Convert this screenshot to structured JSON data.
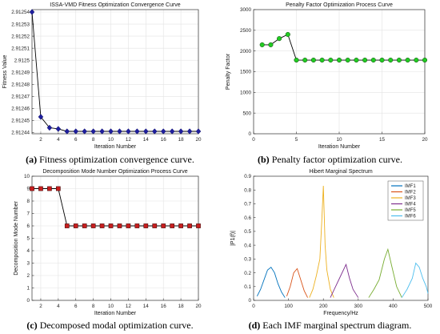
{
  "captions": [
    {
      "letter": "(a)",
      "text": " Fitness optimization convergence curve."
    },
    {
      "letter": "(b)",
      "text": " Penalty factor optimization curve."
    },
    {
      "letter": "(c)",
      "text": " Decomposed modal optimization curve."
    },
    {
      "letter": "(d)",
      "text": " Each IMF marginal spectrum diagram."
    }
  ],
  "chart_data": [
    {
      "type": "line",
      "title": "ISSA-VMD Fitness Optimization Convergence Curve",
      "xlabel": "Iteration Number",
      "ylabel": "Fitness Value",
      "xlim": [
        1,
        20
      ],
      "ylim": [
        2.912439,
        2.912542
      ],
      "xticks": [
        2,
        4,
        6,
        8,
        10,
        12,
        14,
        16,
        18,
        20
      ],
      "yticks": [
        2.91244,
        2.91245,
        2.91246,
        2.91247,
        2.91248,
        2.91249,
        2.9125,
        2.91251,
        2.91252,
        2.91253,
        2.91254
      ],
      "ytick_labels": [
        "2.91244",
        "2.91245",
        "2.91246",
        "2.91247",
        "2.91248",
        "2.91249",
        "2.9125",
        "2.91251",
        "2.91252",
        "2.91253",
        "2.91254"
      ],
      "grid": true,
      "line_color": "#000000",
      "marker": "diamond",
      "marker_color": "#1f1f9e",
      "x": [
        1,
        2,
        3,
        4,
        5,
        6,
        7,
        8,
        9,
        10,
        11,
        12,
        13,
        14,
        15,
        16,
        17,
        18,
        19,
        20
      ],
      "y": [
        2.91254,
        2.912453,
        2.912444,
        2.912443,
        2.912441,
        2.912441,
        2.912441,
        2.912441,
        2.912441,
        2.912441,
        2.912441,
        2.912441,
        2.912441,
        2.912441,
        2.912441,
        2.912441,
        2.912441,
        2.912441,
        2.912441,
        2.912441
      ]
    },
    {
      "type": "line",
      "title": "Penalty Factor Optimization Process Curve",
      "xlabel": "Iteration Number",
      "ylabel": "Penalty Factor",
      "xlim": [
        0,
        20
      ],
      "ylim": [
        0,
        3000
      ],
      "xticks": [
        0,
        5,
        10,
        15,
        20
      ],
      "yticks": [
        0,
        500,
        1000,
        1500,
        2000,
        2500,
        3000
      ],
      "grid": true,
      "line_color": "#000000",
      "marker": "circle",
      "marker_color": "#22cc22",
      "x": [
        1,
        2,
        3,
        4,
        5,
        6,
        7,
        8,
        9,
        10,
        11,
        12,
        13,
        14,
        15,
        16,
        17,
        18,
        19,
        20
      ],
      "y": [
        2150,
        2150,
        2300,
        2400,
        1780,
        1780,
        1780,
        1780,
        1780,
        1780,
        1780,
        1780,
        1780,
        1780,
        1780,
        1780,
        1780,
        1780,
        1780,
        1780
      ]
    },
    {
      "type": "line",
      "title": "Decomposition Mode Number Optimization Process Curve",
      "xlabel": "Iteration Number",
      "ylabel": "Decomposition Mode Number",
      "xlim": [
        1,
        20
      ],
      "ylim": [
        0,
        10
      ],
      "xticks": [
        2,
        4,
        6,
        8,
        10,
        12,
        14,
        16,
        18,
        20
      ],
      "yticks": [
        0,
        1,
        2,
        3,
        4,
        5,
        6,
        7,
        8,
        9,
        10
      ],
      "grid": true,
      "line_color": "#000000",
      "marker": "square",
      "marker_color": "#c81e1e",
      "x": [
        1,
        2,
        3,
        4,
        5,
        6,
        7,
        8,
        9,
        10,
        11,
        12,
        13,
        14,
        15,
        16,
        17,
        18,
        19,
        20
      ],
      "y": [
        9,
        9,
        9,
        9,
        6,
        6,
        6,
        6,
        6,
        6,
        6,
        6,
        6,
        6,
        6,
        6,
        6,
        6,
        6,
        6
      ]
    },
    {
      "type": "line",
      "title": "Hibert Marginal Spectrum",
      "xlabel": "Frequency/Hz",
      "ylabel": "|P1(f)|",
      "xlim": [
        0,
        500
      ],
      "ylim": [
        0,
        0.9
      ],
      "xticks": [
        0,
        100,
        200,
        300,
        400,
        500
      ],
      "yticks": [
        0,
        0.1,
        0.2,
        0.3,
        0.4,
        0.5,
        0.6,
        0.7,
        0.8,
        0.9
      ],
      "grid": false,
      "legend": "top-right",
      "series": [
        {
          "name": "IMF1",
          "color": "#0072bd",
          "x": [
            10,
            20,
            30,
            40,
            50,
            60,
            70,
            80,
            90
          ],
          "y": [
            0.03,
            0.08,
            0.15,
            0.22,
            0.24,
            0.2,
            0.12,
            0.06,
            0.02
          ]
        },
        {
          "name": "IMF2",
          "color": "#d95319",
          "x": [
            95,
            105,
            115,
            125,
            135,
            145,
            155
          ],
          "y": [
            0.03,
            0.1,
            0.2,
            0.23,
            0.15,
            0.07,
            0.02
          ]
        },
        {
          "name": "IMF3",
          "color": "#edb120",
          "x": [
            160,
            170,
            180,
            190,
            195,
            200,
            205,
            210,
            220,
            230
          ],
          "y": [
            0.02,
            0.08,
            0.18,
            0.3,
            0.55,
            0.83,
            0.4,
            0.22,
            0.08,
            0.02
          ]
        },
        {
          "name": "IMF4",
          "color": "#7e2f8e",
          "x": [
            220,
            235,
            250,
            265,
            275,
            285,
            300
          ],
          "y": [
            0.02,
            0.1,
            0.18,
            0.26,
            0.16,
            0.08,
            0.02
          ]
        },
        {
          "name": "IMF5",
          "color": "#77ac30",
          "x": [
            330,
            345,
            360,
            375,
            385,
            395,
            410,
            425
          ],
          "y": [
            0.02,
            0.08,
            0.15,
            0.3,
            0.37,
            0.26,
            0.1,
            0.02
          ]
        },
        {
          "name": "IMF6",
          "color": "#4dbeee",
          "x": [
            425,
            440,
            455,
            465,
            475,
            485,
            495,
            500
          ],
          "y": [
            0.02,
            0.08,
            0.16,
            0.27,
            0.24,
            0.16,
            0.1,
            0.05
          ]
        }
      ]
    }
  ]
}
